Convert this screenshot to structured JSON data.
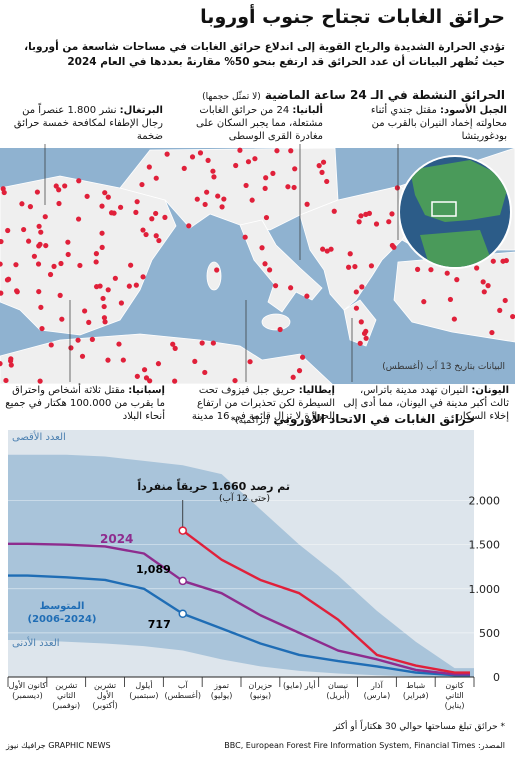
{
  "header": {
    "title": "حرائق الغابات تجتاح جنوب أوروبا",
    "subtitle": "تؤدي الحرارة الشديدة والرياح القوية إلى اندلاع حرائق الغابات في مساحات شاسعة من أوروبا، حيث تُظهر البيانات أن عدد الحرائق قد ارتفع بنحو 50% مقارنةً بعددها في العام 2024"
  },
  "map": {
    "title": "الحرائق النشطة في الـ 24 ساعة الماضية",
    "note": "(لا تمثّل حجمها)",
    "date_note": "البيانات بتاريخ 13 آب (أغسطس)",
    "annotations": [
      {
        "label": "الجبل الأسود:",
        "text": "مقتل جندي أثناء محاولته إخماد النيران بالقرب من بودغوريتشا"
      },
      {
        "label": "ألبانيا:",
        "text": "24 من حرائق الغابات مشتعلة، مما يجبر السكان على مغادرة القرى الوسطى"
      },
      {
        "label": "البرتغال:",
        "text": "نشر 1.800 عنصراً من رجال الإطفاء لمكافحة خمسة حرائق ضخمة"
      },
      {
        "label": "اليونان:",
        "text": "النيران تهدد مدينة باتراس، ثالث أكبر مدينة في اليونان، مما أدى إلى إخلاء السكان"
      },
      {
        "label": "إيطاليا:",
        "text": "حريق جبل فيزوف تحت السيطرة لكن تحذيرات من ارتفاع الحرارة لا تزال قائمة في 16 مدينة"
      },
      {
        "label": "إسبانيا:",
        "text": "مقتل ثلاثة أشخاص واحتراق ما يقرب من 100.000 هكتار في جميع أنحاء البلاد"
      }
    ]
  },
  "chart_data": {
    "type": "line",
    "title": "حرائق الغابات في الاتحاد الأوروبي",
    "subtitle": "(تراكمية)*",
    "categories": [
      "كانون الثاني (يناير)",
      "شباط (فبراير)",
      "آذار (مارس)",
      "نيسان (أبريل)",
      "أيار (مايو)",
      "حزيران (يونيو)",
      "تموز (يوليو)",
      "آب (أغسطس)",
      "أيلول (سبتمبر)",
      "تشرين الأول (أكتوبر)",
      "تشرين الثاني (نوفمبر)",
      "كانون الأول (ديسمبر)"
    ],
    "series": [
      {
        "name": "العدد الأقصى",
        "color": "#a9c4da",
        "area": true,
        "values": [
          100,
          400,
          750,
          1150,
          1500,
          1900,
          2300,
          2400,
          2450,
          2500,
          2520,
          2520
        ]
      },
      {
        "name": "العدد الأدنى",
        "color": "#dde5ec",
        "area": true,
        "values": [
          0,
          5,
          20,
          40,
          70,
          120,
          200,
          300,
          350,
          380,
          400,
          420
        ]
      },
      {
        "name": "المتوسط (2024-2006)",
        "color": "#1f6db5",
        "values": [
          20,
          50,
          120,
          180,
          250,
          380,
          550,
          717,
          1000,
          1100,
          1130,
          1150
        ],
        "value_labels": [
          null,
          null,
          null,
          null,
          null,
          null,
          null,
          "717",
          null,
          null,
          null,
          null
        ]
      },
      {
        "name": "2024",
        "color": "#8e2c8e",
        "values": [
          30,
          80,
          200,
          300,
          500,
          700,
          950,
          1089,
          1400,
          1480,
          1500,
          1510
        ],
        "value_labels": [
          null,
          null,
          null,
          null,
          null,
          null,
          null,
          "1,089",
          null,
          null,
          null,
          null
        ]
      },
      {
        "color": "#e0203a",
        "values": [
          50,
          130,
          250,
          650,
          950,
          1100,
          1330,
          1660,
          null,
          null,
          null,
          null
        ]
      }
    ],
    "annotation": "تم رصد 1.660 حريقاً منفرداً",
    "annotation_note": "(حتى 12 آب)",
    "ylim": [
      0,
      2800
    ],
    "yticks": [
      0,
      500,
      {
        "value": 1000,
        "label": "1.000"
      },
      {
        "value": 1500,
        "label": "1.500"
      },
      {
        "value": 2000,
        "label": "2.000"
      }
    ],
    "grid": true,
    "footnote": "* حرائق تبلغ مساحتها حوالي 30 هكتاراً أو أكثر"
  },
  "footer": {
    "source": "المصدر: BBC, European Forest Fire Information System, Financial Times",
    "credit": "GRAPHIC NEWS جرافيك نيوز"
  }
}
